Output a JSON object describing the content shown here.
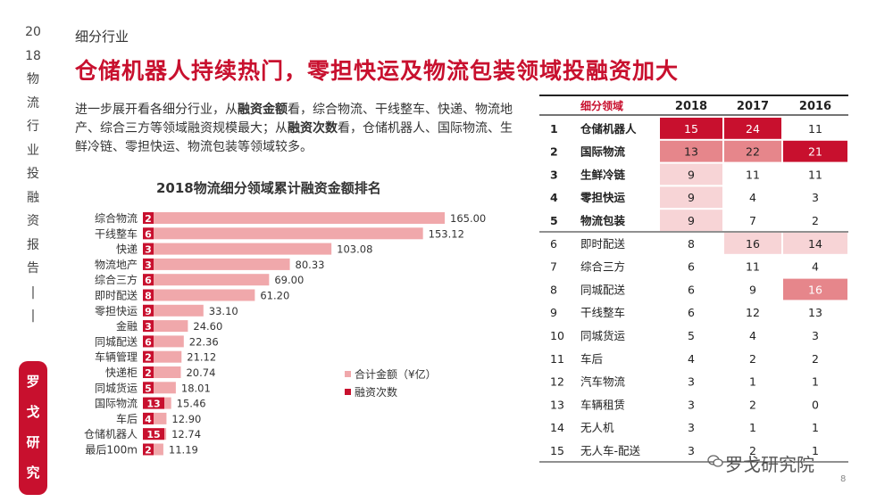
{
  "sidebar": {
    "chars": [
      "20",
      "18",
      "物",
      "流",
      "行",
      "业",
      "投",
      "融",
      "资",
      "报",
      "告",
      "|",
      "|"
    ],
    "badge_chars": [
      "罗",
      "戈",
      "研",
      "究"
    ]
  },
  "section_title": "细分行业",
  "headline": "仓储机器人持续热门，零担快运及物流包装领域投融资加大",
  "intro": {
    "t1": "进一步展开看各细分行业，从",
    "b1": "融资金额",
    "t2": "看，综合物流、干线整车、快递、物流地产、综合三方等领域融资规模最大；从",
    "b2": "融资次数",
    "t3": "看，仓储机器人、国际物流、生鲜冷链、零担快运、物流包装等领域较多。"
  },
  "chart_data": [
    {
      "type": "bar",
      "title": "2018物流细分领域累计融资金额排名",
      "categories": [
        "综合物流",
        "干线整车",
        "快递",
        "物流地产",
        "综合三方",
        "即时配送",
        "零担快运",
        "金融",
        "同城配送",
        "车辆管理",
        "快递柜",
        "同城货运",
        "国际物流",
        "车后",
        "仓储机器人",
        "最后100m"
      ],
      "series": [
        {
          "name": "合计金额（¥亿）",
          "values": [
            165.0,
            153.12,
            103.08,
            80.33,
            69.0,
            61.2,
            33.1,
            24.6,
            22.36,
            21.12,
            20.74,
            18.01,
            15.46,
            12.9,
            12.74,
            11.19
          ],
          "labels": [
            "165.00",
            "153.12",
            "103.08",
            "80.33",
            "69.00",
            "61.20",
            "33.10",
            "24.60",
            "22.36",
            "21.12",
            "20.74",
            "18.01",
            "15.46",
            "12.90",
            "12.74",
            "11.19"
          ],
          "color": "#f0a8ab"
        },
        {
          "name": "融资次数",
          "values": [
            2,
            6,
            3,
            3,
            6,
            8,
            9,
            3,
            6,
            2,
            2,
            5,
            13,
            4,
            15,
            2
          ],
          "color": "#c8102e"
        }
      ],
      "legend": "right"
    },
    {
      "type": "table",
      "columns": [
        "",
        "细分领域",
        "2018",
        "2017",
        "2016"
      ],
      "rows": [
        [
          "1",
          "仓储机器人",
          "15",
          "24",
          "11"
        ],
        [
          "2",
          "国际物流",
          "13",
          "22",
          "21"
        ],
        [
          "3",
          "生鲜冷链",
          "9",
          "11",
          "11"
        ],
        [
          "4",
          "零担快运",
          "9",
          "4",
          "3"
        ],
        [
          "5",
          "物流包装",
          "9",
          "7",
          "2"
        ],
        [
          "6",
          "即时配送",
          "8",
          "16",
          "14"
        ],
        [
          "7",
          "综合三方",
          "6",
          "11",
          "4"
        ],
        [
          "8",
          "同城配送",
          "6",
          "9",
          "16"
        ],
        [
          "9",
          "干线整车",
          "6",
          "12",
          "13"
        ],
        [
          "10",
          "同城货运",
          "5",
          "4",
          "3"
        ],
        [
          "11",
          "车后",
          "4",
          "2",
          "2"
        ],
        [
          "12",
          "汽车物流",
          "3",
          "1",
          "1"
        ],
        [
          "13",
          "车辆租赁",
          "3",
          "2",
          "0"
        ],
        [
          "14",
          "无人机",
          "3",
          "1",
          "1"
        ],
        [
          "15",
          "无人车-配送",
          "3",
          "2",
          "1"
        ]
      ]
    }
  ],
  "brand": "罗戈研究院",
  "page_number": "8",
  "colors": {
    "accent": "#c8102e",
    "bar_light": "#f0a8ab",
    "cell_light": "#f7d4d6",
    "cell_mid": "#e6868b"
  }
}
